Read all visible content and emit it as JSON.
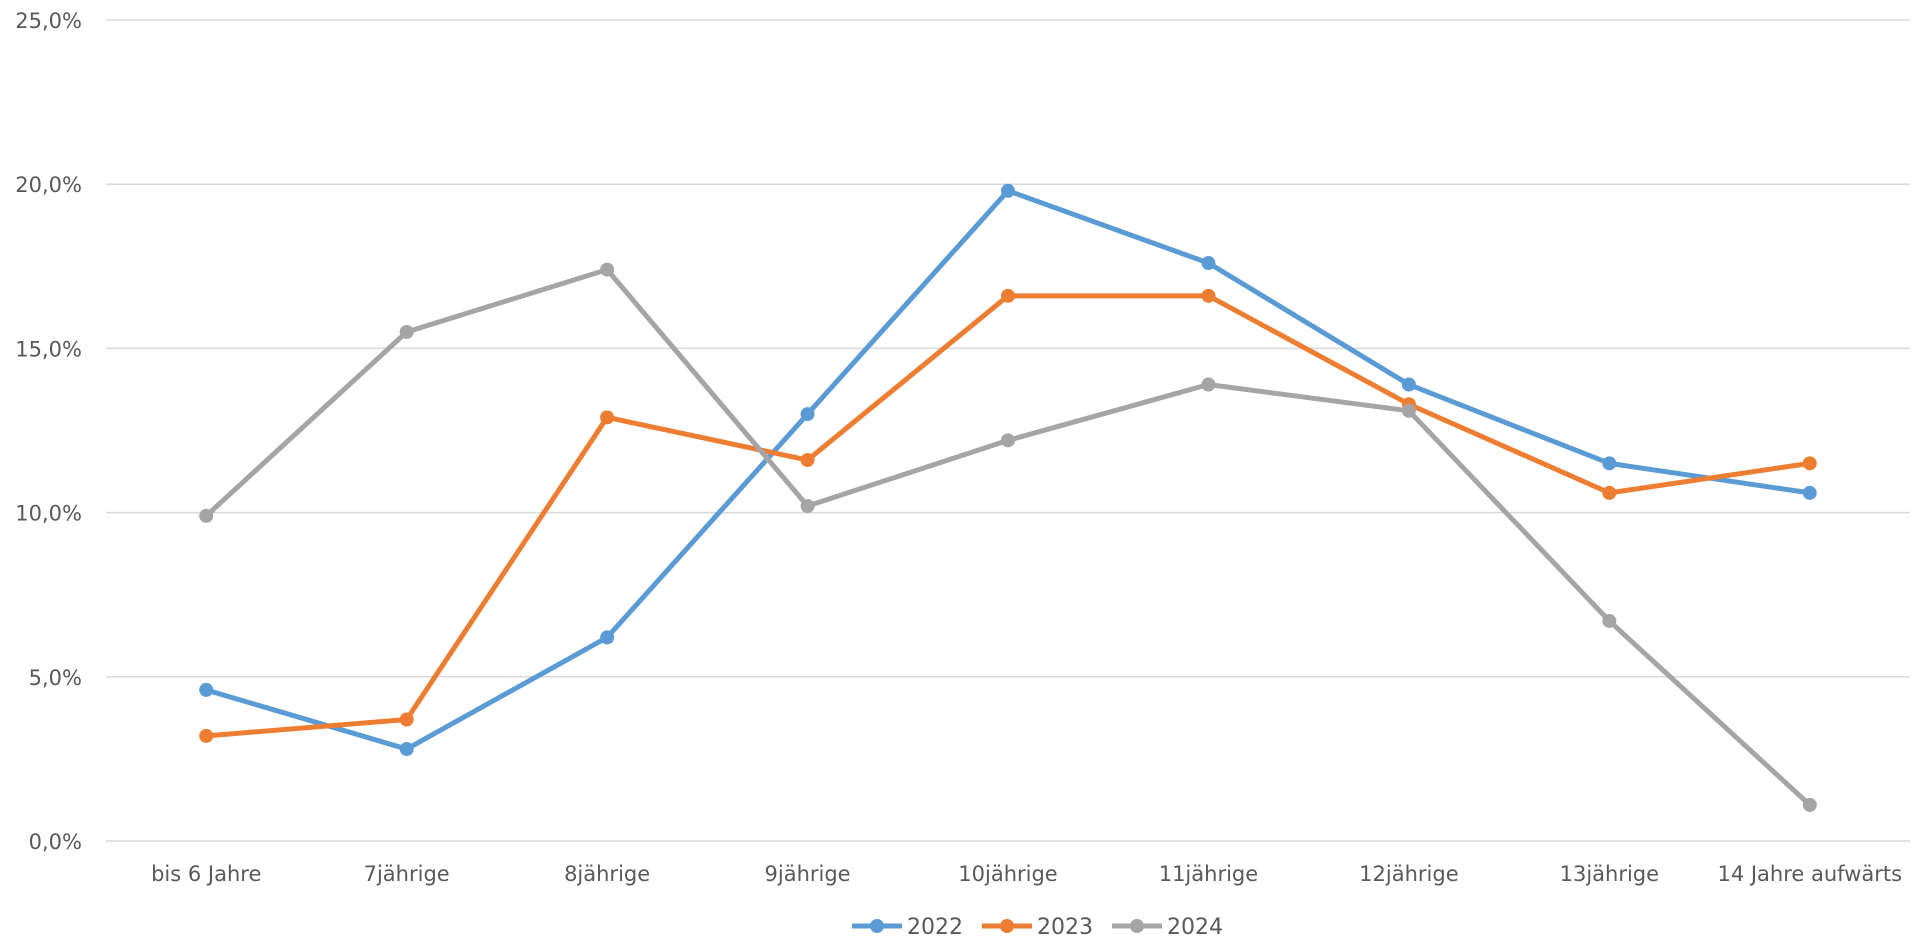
{
  "chart_data": {
    "type": "line",
    "categories": [
      "bis 6 Jahre",
      "7jährige",
      "8jährige",
      "9jährige",
      "10jährige",
      "11jährige",
      "12jährige",
      "13jährige",
      "14 Jahre aufwärts"
    ],
    "series": [
      {
        "name": "2022",
        "color": "#5b9bd5",
        "values": [
          4.6,
          2.8,
          6.2,
          13.0,
          19.8,
          17.6,
          13.9,
          11.5,
          10.6
        ]
      },
      {
        "name": "2023",
        "color": "#ed7d31",
        "values": [
          3.2,
          3.7,
          12.9,
          11.6,
          16.6,
          16.6,
          13.3,
          10.6,
          11.5
        ]
      },
      {
        "name": "2024",
        "color": "#a5a5a5",
        "values": [
          9.9,
          15.5,
          17.4,
          10.2,
          12.2,
          13.9,
          13.1,
          6.7,
          1.1
        ]
      }
    ],
    "yticks": [
      "0,0%",
      "5,0%",
      "10,0%",
      "15,0%",
      "20,0%",
      "25,0%"
    ],
    "ylim": [
      0,
      25
    ],
    "grid": true,
    "legend_position": "bottom"
  }
}
